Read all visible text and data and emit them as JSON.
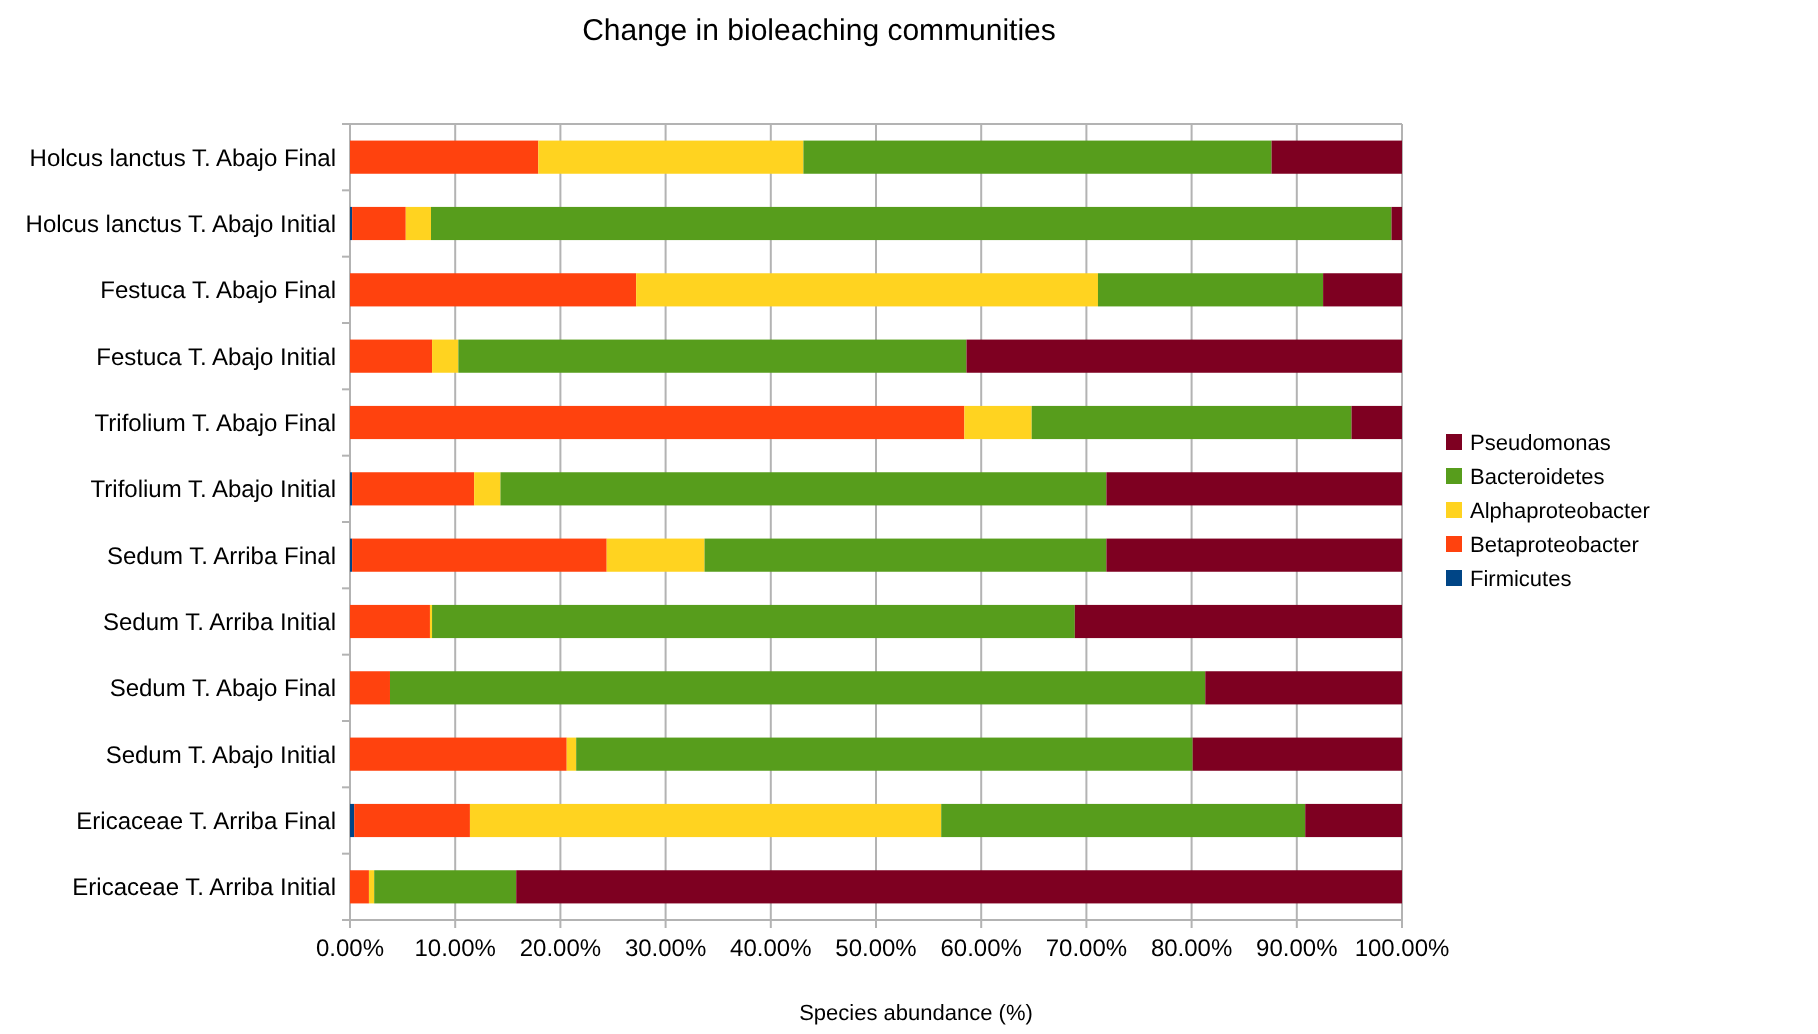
{
  "chart_data": {
    "type": "bar",
    "orientation": "horizontal",
    "stacked": true,
    "title": "Change in bioleaching communities",
    "xlabel": "Species abundance (%)",
    "categories": [
      "Holcus lanctus T. Abajo Final",
      "Holcus lanctus T. Abajo Initial",
      "Festuca T. Abajo Final",
      "Festuca T. Abajo Initial",
      "Trifolium T. Abajo Final",
      "Trifolium T. Abajo Initial",
      "Sedum T. Arriba Final",
      "Sedum T. Arriba Initial",
      "Sedum T. Abajo Final",
      "Sedum T. Abajo Initial",
      "Ericaceae T. Arriba Final",
      "Ericaceae T. Arriba Initial"
    ],
    "series": [
      {
        "name": "Firmicutes",
        "color": "#004586",
        "values": [
          0,
          0.2,
          0,
          0,
          0,
          0.2,
          0.2,
          0,
          0,
          0,
          0.4,
          0
        ]
      },
      {
        "name": "Betaproteobacter",
        "color": "#ff420e",
        "values": [
          17.9,
          5.1,
          27.2,
          7.8,
          58.4,
          11.6,
          24.2,
          7.6,
          3.8,
          20.6,
          11.0,
          1.8
        ]
      },
      {
        "name": "Alphaproteobacter",
        "color": "#ffd320",
        "values": [
          25.2,
          2.4,
          43.9,
          2.5,
          6.4,
          2.5,
          9.3,
          0.2,
          0,
          0.9,
          44.8,
          0.5
        ]
      },
      {
        "name": "Bacteroidetes",
        "color": "#579d1c",
        "values": [
          44.5,
          91.3,
          21.4,
          48.3,
          30.4,
          57.6,
          38.2,
          61.1,
          77.5,
          58.6,
          34.6,
          13.5
        ]
      },
      {
        "name": "Pseudomonas",
        "color": "#7e0021",
        "values": [
          12.4,
          1.0,
          7.5,
          41.4,
          4.8,
          28.1,
          28.1,
          31.1,
          18.7,
          19.9,
          9.2,
          84.2
        ]
      }
    ],
    "xlim": [
      0,
      100
    ],
    "xticks": [
      {
        "value": 0,
        "label": "0.00%"
      },
      {
        "value": 10,
        "label": "10.00%"
      },
      {
        "value": 20,
        "label": "20.00%"
      },
      {
        "value": 30,
        "label": "30.00%"
      },
      {
        "value": 40,
        "label": "40.00%"
      },
      {
        "value": 50,
        "label": "50.00%"
      },
      {
        "value": 60,
        "label": "60.00%"
      },
      {
        "value": 70,
        "label": "70.00%"
      },
      {
        "value": 80,
        "label": "80.00%"
      },
      {
        "value": 90,
        "label": "90.00%"
      },
      {
        "value": 100,
        "label": "100.00%"
      }
    ],
    "grid": "x",
    "legend": "right"
  }
}
